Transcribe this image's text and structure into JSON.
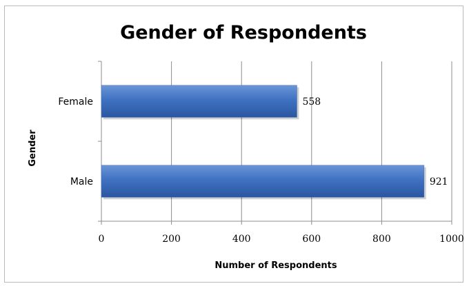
{
  "chart_data": {
    "type": "bar",
    "orientation": "horizontal",
    "title": "Gender of Respondents",
    "xlabel": "Number of Respondents",
    "ylabel": "Gender",
    "categories": [
      "Female",
      "Male"
    ],
    "values": [
      558,
      921
    ],
    "data_labels": [
      "558",
      "921"
    ],
    "xlim": [
      0,
      1000
    ],
    "xticks": [
      0,
      200,
      400,
      600,
      800,
      1000
    ],
    "xtick_labels": [
      "0",
      "200",
      "400",
      "600",
      "800",
      "1000"
    ],
    "grid": "vertical",
    "legend": "none",
    "bar_color": "#3d6fc0"
  }
}
